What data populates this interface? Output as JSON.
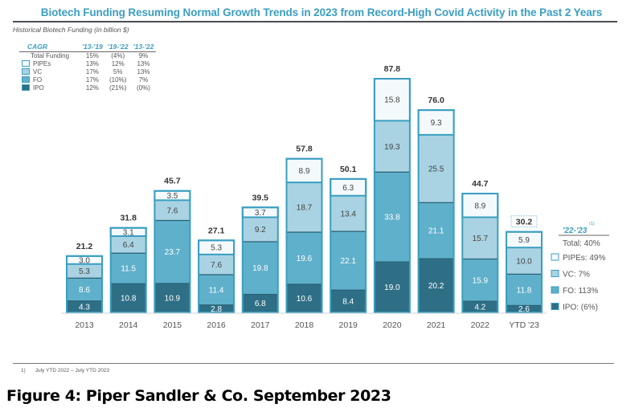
{
  "header": {
    "title": "Biotech Funding Resuming Normal Growth Trends in 2023 from Record-High Covid Activity in the Past 2 Years",
    "subtitle": "Historical Biotech Funding (in billion $)"
  },
  "cagr_table": {
    "header": [
      "CAGR",
      "'13-'19",
      "'19-'22",
      "'13-'22"
    ],
    "rows": [
      {
        "label": "Total Funding",
        "swatch": "",
        "values": [
          "15%",
          "(4%)",
          "9%"
        ]
      },
      {
        "label": "PIPEs",
        "swatch": "#f4fafc",
        "values": [
          "13%",
          "12%",
          "13%"
        ]
      },
      {
        "label": "VC",
        "swatch": "#a9d3e2",
        "values": [
          "17%",
          "5%",
          "13%"
        ]
      },
      {
        "label": "FO",
        "swatch": "#5fb0cb",
        "values": [
          "17%",
          "(10%)",
          "7%"
        ]
      },
      {
        "label": "IPO",
        "swatch": "#2e6f86",
        "values": [
          "12%",
          "(21%)",
          "(0%)"
        ]
      }
    ]
  },
  "right_legend": {
    "heading": "'22-'23",
    "heading_note": "(1)",
    "total": "Total: 40%",
    "items": [
      {
        "label": "PIPEs: 49%",
        "color": "#f4fafc"
      },
      {
        "label": "VC: 7%",
        "color": "#a9d3e2"
      },
      {
        "label": "FO: 113%",
        "color": "#5fb0cb"
      },
      {
        "label": "IPO: (6%)",
        "color": "#2e6f86"
      }
    ]
  },
  "chart_data": {
    "type": "bar",
    "stacked": true,
    "title": "Biotech Funding Resuming Normal Growth Trends in 2023 from Record-High Covid Activity in the Past 2 Years",
    "ylabel": "Historical Biotech Funding (in billion $)",
    "xlabel": "",
    "ylim": [
      0,
      90
    ],
    "grid": false,
    "legend": "right",
    "categories": [
      "2013",
      "2014",
      "2015",
      "2016",
      "2017",
      "2018",
      "2019",
      "2020",
      "2021",
      "2022",
      "YTD '23"
    ],
    "series": [
      {
        "name": "IPO",
        "color": "#2e6f86",
        "text_color": "#ffffff",
        "values": [
          4.3,
          10.8,
          10.9,
          2.8,
          6.8,
          10.6,
          8.4,
          19.0,
          20.2,
          4.2,
          2.6
        ]
      },
      {
        "name": "FO",
        "color": "#5fb0cb",
        "text_color": "#ffffff",
        "values": [
          8.6,
          11.5,
          23.7,
          11.4,
          19.8,
          19.6,
          22.1,
          33.8,
          21.1,
          15.9,
          11.8
        ]
      },
      {
        "name": "VC",
        "color": "#a9d3e2",
        "text_color": "#444444",
        "values": [
          5.3,
          6.4,
          7.6,
          7.6,
          9.2,
          18.7,
          13.4,
          19.3,
          25.5,
          15.7,
          10.0
        ]
      },
      {
        "name": "PIPEs",
        "color": "#f4fafc",
        "text_color": "#444444",
        "values": [
          3.0,
          3.1,
          3.5,
          5.3,
          3.7,
          8.9,
          6.3,
          15.8,
          9.3,
          8.9,
          5.9
        ]
      }
    ],
    "totals": [
      "21.2",
      "31.8",
      "45.7",
      "27.1",
      "39.5",
      "57.8",
      "50.1",
      "87.8",
      "76.0",
      "44.7",
      "30.2"
    ],
    "highlight_total_index": 10
  },
  "footnote": {
    "marker": "1)",
    "text": "July YTD 2022 – July YTD 2023"
  },
  "caption": "Figure 4: Piper Sandler & Co. September 2023"
}
